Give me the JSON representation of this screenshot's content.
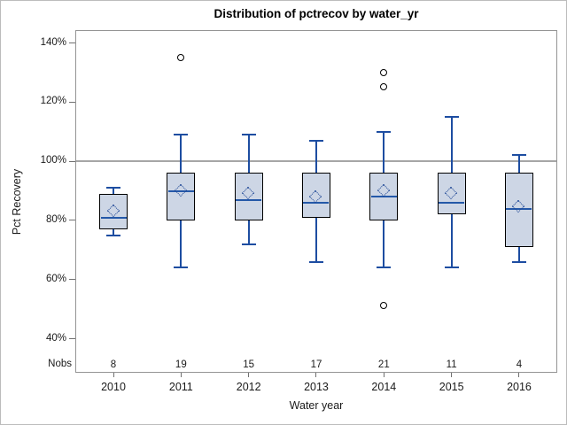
{
  "window": {
    "background": "#ffffff",
    "border_color": "#bcbcbc"
  },
  "chart_data": {
    "type": "boxplot",
    "title": "Distribution of pctrecov by water_yr",
    "xlabel": "Water year",
    "ylabel": "Pct Recovery",
    "nobs_label": "Nobs",
    "categories": [
      "2010",
      "2011",
      "2012",
      "2013",
      "2014",
      "2015",
      "2016"
    ],
    "nobs": [
      8,
      19,
      15,
      17,
      21,
      11,
      4
    ],
    "y_ticks": [
      {
        "value": 140,
        "label": "140%"
      },
      {
        "value": 120,
        "label": "120%"
      },
      {
        "value": 100,
        "label": "100%"
      },
      {
        "value": 80,
        "label": "80%"
      },
      {
        "value": 60,
        "label": "60%"
      },
      {
        "value": 40,
        "label": "40%"
      }
    ],
    "ylim": [
      28,
      144
    ],
    "reference_line": 100,
    "grid": false,
    "series": [
      {
        "category": "2010",
        "n": 8,
        "whisker_low": 75,
        "q1": 77,
        "median": 81,
        "q3": 89,
        "whisker_high": 91,
        "mean": 83,
        "outliers": []
      },
      {
        "category": "2011",
        "n": 19,
        "whisker_low": 64,
        "q1": 80,
        "median": 90,
        "q3": 96,
        "whisker_high": 109,
        "mean": 90,
        "outliers": [
          135
        ]
      },
      {
        "category": "2012",
        "n": 15,
        "whisker_low": 72,
        "q1": 80,
        "median": 87,
        "q3": 96,
        "whisker_high": 109,
        "mean": 89,
        "outliers": []
      },
      {
        "category": "2013",
        "n": 17,
        "whisker_low": 66,
        "q1": 81,
        "median": 86,
        "q3": 96,
        "whisker_high": 107,
        "mean": 88,
        "outliers": []
      },
      {
        "category": "2014",
        "n": 21,
        "whisker_low": 64,
        "q1": 80,
        "median": 88,
        "q3": 96,
        "whisker_high": 110,
        "mean": 90,
        "outliers": [
          130,
          125,
          51
        ]
      },
      {
        "category": "2015",
        "n": 11,
        "whisker_low": 64,
        "q1": 82,
        "median": 86,
        "q3": 96,
        "whisker_high": 115,
        "mean": 89,
        "outliers": []
      },
      {
        "category": "2016",
        "n": 4,
        "whisker_low": 66,
        "q1": 71,
        "median": 84,
        "q3": 96,
        "whisker_high": 102,
        "mean": 84.5,
        "outliers": []
      }
    ],
    "colors": {
      "box_fill": "#cdd6e5",
      "box_border": "#000000",
      "median_line": "#2458a8",
      "whisker_line": "#1d4da1",
      "mean_marker": "#1d4695",
      "outlier_stroke": "#000000",
      "reference_line": "#a6a6a6",
      "frame_border": "#949494",
      "text": "#1a1a1a"
    }
  }
}
